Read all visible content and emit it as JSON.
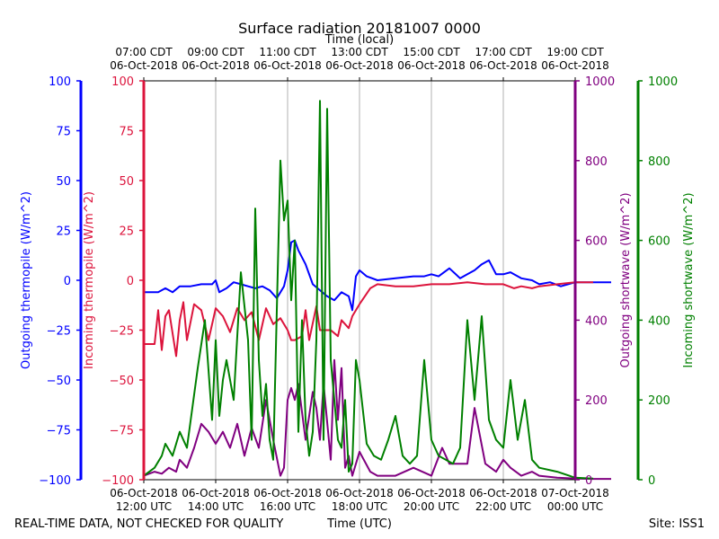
{
  "chart_data": {
    "type": "line",
    "title": "Surface radiation 20181007 0000",
    "top_axis_title": "Time (local)",
    "xlabel": "Time (UTC)",
    "footer_left": "REAL-TIME DATA, NOT CHECKED FOR QUALITY",
    "footer_right": "Site: ISS1",
    "top_ticks": [
      {
        "t": 12,
        "line1": "07:00 CDT",
        "line2": "06-Oct-2018"
      },
      {
        "t": 14,
        "line1": "09:00 CDT",
        "line2": "06-Oct-2018"
      },
      {
        "t": 16,
        "line1": "11:00 CDT",
        "line2": "06-Oct-2018"
      },
      {
        "t": 18,
        "line1": "13:00 CDT",
        "line2": "06-Oct-2018"
      },
      {
        "t": 20,
        "line1": "15:00 CDT",
        "line2": "06-Oct-2018"
      },
      {
        "t": 22,
        "line1": "17:00 CDT",
        "line2": "06-Oct-2018"
      },
      {
        "t": 24,
        "line1": "19:00 CDT",
        "line2": "06-Oct-2018"
      }
    ],
    "bottom_ticks": [
      {
        "t": 12,
        "line1": "06-Oct-2018",
        "line2": "12:00 UTC"
      },
      {
        "t": 14,
        "line1": "06-Oct-2018",
        "line2": "14:00 UTC"
      },
      {
        "t": 16,
        "line1": "06-Oct-2018",
        "line2": "16:00 UTC"
      },
      {
        "t": 18,
        "line1": "06-Oct-2018",
        "line2": "18:00 UTC"
      },
      {
        "t": 20,
        "line1": "06-Oct-2018",
        "line2": "20:00 UTC"
      },
      {
        "t": 22,
        "line1": "06-Oct-2018",
        "line2": "22:00 UTC"
      },
      {
        "t": 24,
        "line1": "07-Oct-2018",
        "line2": "00:00 UTC"
      }
    ],
    "xlim": [
      12,
      25.3
    ],
    "axes": {
      "outgoing_thermopile": {
        "label": "Outgoing thermopile (W/m^2)",
        "color": "#0000ff",
        "ylim": [
          -100,
          100
        ],
        "ticks": [
          -100,
          -75,
          -50,
          -25,
          0,
          25,
          50,
          75,
          100
        ]
      },
      "incoming_thermopile": {
        "label": "Incoming thermopile (W/m^2)",
        "color": "#dc143c",
        "ylim": [
          -100,
          100
        ],
        "ticks": [
          -100,
          -75,
          -50,
          -25,
          0,
          25,
          50,
          75,
          100
        ]
      },
      "outgoing_shortwave": {
        "label": "Outgoing shortwave (W/m^2)",
        "color": "#800080",
        "ylim": [
          0,
          1000
        ],
        "ticks": [
          0,
          200,
          400,
          600,
          800,
          1000
        ]
      },
      "incoming_shortwave": {
        "label": "Incoming shortwave (W/m^2)",
        "color": "#008000",
        "ylim": [
          0,
          1000
        ],
        "ticks": [
          0,
          200,
          400,
          600,
          800,
          1000
        ]
      }
    },
    "series": [
      {
        "name": "Outgoing thermopile",
        "axis": "outgoing_thermopile",
        "color": "#0000ff",
        "x": [
          12.0,
          12.4,
          12.6,
          12.8,
          13.0,
          13.3,
          13.6,
          13.9,
          14.0,
          14.1,
          14.3,
          14.5,
          14.7,
          14.9,
          15.1,
          15.3,
          15.5,
          15.7,
          15.9,
          16.0,
          16.1,
          16.2,
          16.3,
          16.5,
          16.7,
          16.9,
          17.1,
          17.3,
          17.5,
          17.7,
          17.8,
          17.9,
          18.0,
          18.2,
          18.5,
          19.0,
          19.5,
          19.8,
          20.0,
          20.2,
          20.5,
          20.8,
          21.0,
          21.2,
          21.4,
          21.6,
          21.8,
          22.0,
          22.2,
          22.5,
          22.8,
          23.0,
          23.3,
          23.6,
          24.0,
          24.3,
          24.5,
          25.0
        ],
        "y": [
          -6,
          -6,
          -4,
          -6,
          -3,
          -3,
          -2,
          -2,
          0,
          -6,
          -4,
          -1,
          -2,
          -3,
          -4,
          -3,
          -5,
          -9,
          -3,
          5,
          19,
          20,
          15,
          8,
          -2,
          -5,
          -8,
          -10,
          -6,
          -8,
          -15,
          2,
          5,
          2,
          0,
          1,
          2,
          2,
          3,
          2,
          6,
          1,
          3,
          5,
          8,
          10,
          3,
          3,
          4,
          1,
          0,
          -2,
          -1,
          -3,
          -1,
          -1,
          -1,
          -1
        ]
      },
      {
        "name": "Incoming thermopile",
        "axis": "incoming_thermopile",
        "color": "#dc143c",
        "x": [
          12.0,
          12.3,
          12.4,
          12.5,
          12.6,
          12.7,
          12.9,
          13.0,
          13.1,
          13.2,
          13.4,
          13.6,
          13.8,
          14.0,
          14.2,
          14.4,
          14.6,
          14.8,
          15.0,
          15.2,
          15.4,
          15.6,
          15.8,
          16.0,
          16.1,
          16.2,
          16.4,
          16.5,
          16.6,
          16.8,
          16.9,
          17.0,
          17.2,
          17.4,
          17.5,
          17.7,
          17.8,
          18.0,
          18.3,
          18.5,
          19.0,
          19.5,
          20.0,
          20.5,
          21.0,
          21.5,
          22.0,
          22.3,
          22.5,
          22.8,
          23.0,
          23.5,
          24.0,
          24.5
        ],
        "y": [
          -32,
          -32,
          -15,
          -35,
          -18,
          -15,
          -38,
          -20,
          -11,
          -30,
          -12,
          -15,
          -30,
          -14,
          -18,
          -26,
          -14,
          -20,
          -16,
          -30,
          -14,
          -22,
          -19,
          -25,
          -30,
          -30,
          -28,
          -15,
          -30,
          -13,
          -25,
          -25,
          -25,
          -28,
          -20,
          -24,
          -18,
          -12,
          -4,
          -2,
          -3,
          -3,
          -2,
          -2,
          -1,
          -2,
          -2,
          -4,
          -3,
          -4,
          -3,
          -2,
          -1,
          -1
        ]
      },
      {
        "name": "Outgoing shortwave",
        "axis": "outgoing_shortwave",
        "color": "#800080",
        "x": [
          12.0,
          12.3,
          12.5,
          12.7,
          12.9,
          13.0,
          13.2,
          13.4,
          13.6,
          13.8,
          14.0,
          14.2,
          14.4,
          14.6,
          14.8,
          15.0,
          15.2,
          15.4,
          15.6,
          15.8,
          15.9,
          16.0,
          16.1,
          16.2,
          16.3,
          16.5,
          16.7,
          16.8,
          16.9,
          17.0,
          17.2,
          17.3,
          17.4,
          17.5,
          17.6,
          17.7,
          17.8,
          18.0,
          18.3,
          18.5,
          19.0,
          19.5,
          20.0,
          20.3,
          20.5,
          21.0,
          21.2,
          21.5,
          21.8,
          22.0,
          22.2,
          22.5,
          22.8,
          23.0,
          23.5,
          24.0,
          24.5,
          25.0
        ],
        "y": [
          10,
          20,
          15,
          30,
          20,
          50,
          30,
          80,
          140,
          120,
          90,
          120,
          80,
          140,
          60,
          130,
          80,
          200,
          100,
          10,
          30,
          200,
          230,
          200,
          240,
          100,
          220,
          180,
          100,
          240,
          50,
          300,
          150,
          280,
          30,
          60,
          10,
          70,
          20,
          10,
          10,
          30,
          10,
          80,
          40,
          40,
          180,
          40,
          20,
          50,
          30,
          10,
          20,
          10,
          5,
          3,
          2,
          2
        ]
      },
      {
        "name": "Incoming shortwave",
        "axis": "incoming_shortwave",
        "color": "#008000",
        "x": [
          12.0,
          12.3,
          12.5,
          12.6,
          12.8,
          13.0,
          13.2,
          13.5,
          13.7,
          13.9,
          14.0,
          14.1,
          14.2,
          14.3,
          14.5,
          14.7,
          14.9,
          15.0,
          15.1,
          15.2,
          15.3,
          15.4,
          15.5,
          15.6,
          15.8,
          15.9,
          16.0,
          16.1,
          16.2,
          16.3,
          16.4,
          16.5,
          16.6,
          16.7,
          16.8,
          16.9,
          17.0,
          17.1,
          17.2,
          17.3,
          17.4,
          17.5,
          17.6,
          17.7,
          17.8,
          17.9,
          18.0,
          18.2,
          18.4,
          18.6,
          18.8,
          19.0,
          19.2,
          19.4,
          19.6,
          19.8,
          20.0,
          20.2,
          20.4,
          20.6,
          20.8,
          21.0,
          21.2,
          21.4,
          21.6,
          21.8,
          22.0,
          22.2,
          22.4,
          22.6,
          22.8,
          23.0,
          23.5,
          24.0,
          24.5
        ],
        "y": [
          10,
          30,
          60,
          90,
          60,
          120,
          80,
          280,
          400,
          150,
          350,
          160,
          250,
          300,
          200,
          520,
          350,
          100,
          680,
          300,
          160,
          240,
          100,
          50,
          800,
          650,
          700,
          450,
          600,
          120,
          400,
          150,
          60,
          120,
          350,
          950,
          100,
          930,
          300,
          200,
          100,
          80,
          200,
          20,
          40,
          300,
          250,
          90,
          60,
          50,
          100,
          160,
          60,
          40,
          60,
          300,
          100,
          60,
          50,
          40,
          80,
          400,
          200,
          410,
          150,
          100,
          80,
          250,
          100,
          200,
          50,
          30,
          20,
          5,
          3
        ]
      }
    ]
  }
}
